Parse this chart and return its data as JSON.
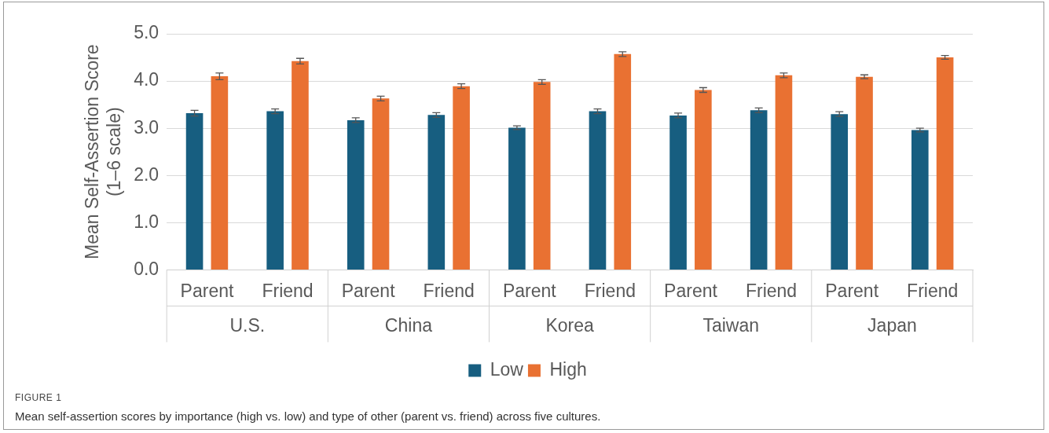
{
  "chart_data": {
    "type": "bar",
    "title": "FIGURE 1",
    "subtitle": "Mean self-assertion scores by importance (high vs. low) and type of other (parent vs. friend) across five cultures.",
    "ylabel": "Mean Self-Assertion Score (1–6 scale)",
    "categories": [
      "Parent",
      "Friend",
      "Parent",
      "Friend",
      "Parent",
      "Friend",
      "Parent",
      "Friend",
      "Parent",
      "Friend"
    ],
    "annotations": [
      "U.S.",
      "China",
      "Korea",
      "Taiwan",
      "Japan"
    ],
    "series": [
      {
        "name": "Low",
        "color": "#175e80",
        "values": [
          3.32,
          3.36,
          3.17,
          3.28,
          3.01,
          3.36,
          3.27,
          3.38,
          3.3,
          2.96
        ],
        "errors": [
          0.06,
          0.05,
          0.05,
          0.05,
          0.04,
          0.05,
          0.05,
          0.05,
          0.05,
          0.04
        ]
      },
      {
        "name": "High",
        "color": "#e97132",
        "values": [
          4.1,
          4.42,
          3.63,
          3.89,
          3.98,
          4.57,
          3.81,
          4.12,
          4.09,
          4.5
        ],
        "errors": [
          0.07,
          0.06,
          0.05,
          0.05,
          0.05,
          0.05,
          0.05,
          0.05,
          0.04,
          0.04
        ]
      }
    ],
    "ylim": [
      0,
      5
    ],
    "yticks": [
      {
        "value": 0,
        "label": "0.0"
      },
      {
        "value": 1,
        "label": "1.0"
      },
      {
        "value": 2,
        "label": "2.0"
      },
      {
        "value": 3,
        "label": "3.0"
      },
      {
        "value": 4,
        "label": "4.0"
      },
      {
        "value": 5,
        "label": "5.0"
      }
    ],
    "grid": "y",
    "legend": "bottom"
  }
}
